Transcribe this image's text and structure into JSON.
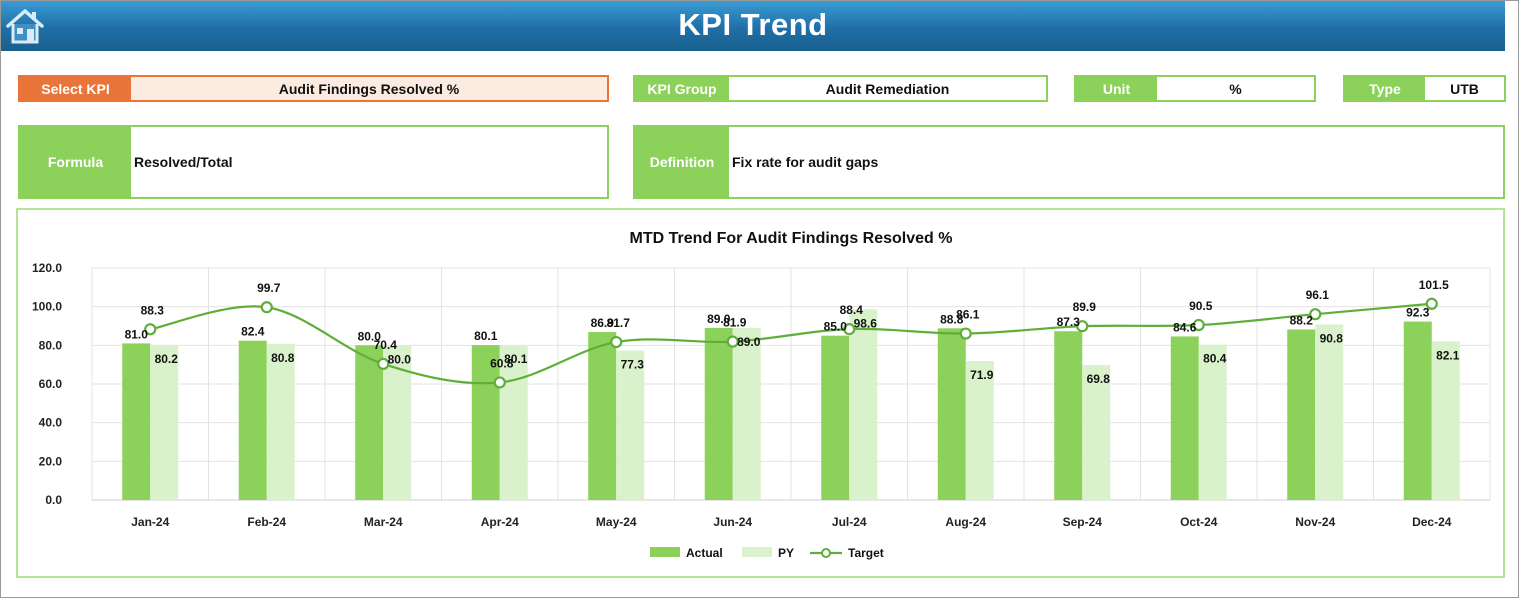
{
  "header": {
    "title": "KPI Trend",
    "home_icon": "home-icon"
  },
  "fields": {
    "select_kpi": {
      "label": "Select KPI",
      "value": "Audit Findings Resolved %"
    },
    "kpi_group": {
      "label": "KPI Group",
      "value": "Audit Remediation"
    },
    "unit": {
      "label": "Unit",
      "value": "%"
    },
    "type": {
      "label": "Type",
      "value": "UTB"
    },
    "formula": {
      "label": "Formula",
      "value": "Resolved/Total"
    },
    "definition": {
      "label": "Definition",
      "value": "Fix rate for audit gaps"
    }
  },
  "colors": {
    "title_bar": "#1f6fa6",
    "orange_accent": "#e9753a",
    "green_accent": "#8cd15a",
    "actual_bar": "#8cd15a",
    "py_bar": "#d9f2cc",
    "target_line": "#5fae3a"
  },
  "chart_data": {
    "type": "bar",
    "title": "MTD Trend For Audit Findings Resolved %",
    "categories": [
      "Jan-24",
      "Feb-24",
      "Mar-24",
      "Apr-24",
      "May-24",
      "Jun-24",
      "Jul-24",
      "Aug-24",
      "Sep-24",
      "Oct-24",
      "Nov-24",
      "Dec-24"
    ],
    "series": [
      {
        "name": "Actual",
        "kind": "bar",
        "values": [
          81.0,
          82.4,
          80.0,
          80.1,
          86.9,
          89.0,
          85.0,
          88.8,
          87.3,
          84.6,
          88.2,
          92.3
        ]
      },
      {
        "name": "PY",
        "kind": "bar",
        "values": [
          80.2,
          80.8,
          80.0,
          80.1,
          77.3,
          89.0,
          98.6,
          71.9,
          69.8,
          80.4,
          90.8,
          82.1
        ]
      },
      {
        "name": "Target",
        "kind": "line",
        "values": [
          88.3,
          99.7,
          70.4,
          60.8,
          81.7,
          81.9,
          88.4,
          86.1,
          89.9,
          90.5,
          96.1,
          101.5
        ]
      }
    ],
    "yticks": [
      "0.0",
      "20.0",
      "40.0",
      "60.0",
      "80.0",
      "100.0",
      "120.0"
    ],
    "ylim": [
      0,
      120
    ],
    "grid": true,
    "legend": "bottom"
  }
}
